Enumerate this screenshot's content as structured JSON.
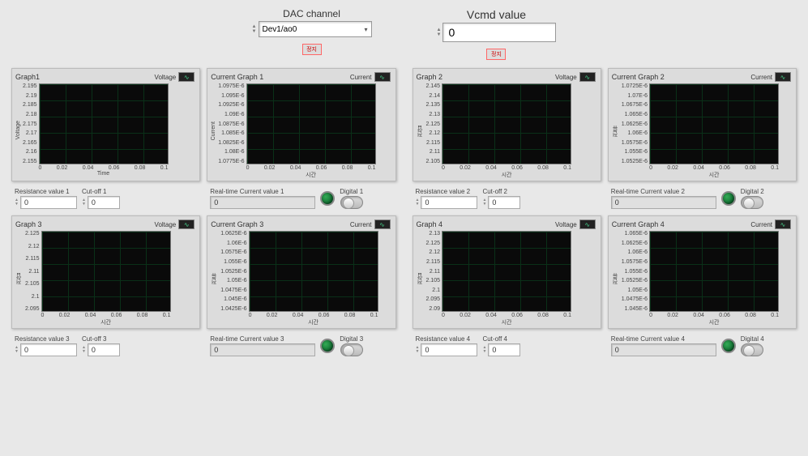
{
  "top": {
    "dac_label": "DAC channel",
    "dac_value": "Dev1/ao0",
    "vcmd_label": "Vcmd value",
    "vcmd_value": "0",
    "stop_btn": "정지"
  },
  "panels": [
    {
      "voltage": {
        "title": "Graph1",
        "legend": "Voltage",
        "ylabel": "Voltage",
        "xlabel": "Time",
        "yticks": [
          "2.195",
          "2.19",
          "2.185",
          "2.18",
          "2.175",
          "2.17",
          "2.165",
          "2.16",
          "2.155"
        ],
        "xticks": [
          "0",
          "0.02",
          "0.04",
          "0.06",
          "0.08",
          "0.1"
        ]
      },
      "current": {
        "title": "Current Graph 1",
        "legend": "Current",
        "ylabel": "Current",
        "xlabel": "시간",
        "yticks": [
          "1.0975E-6",
          "1.095E-6",
          "1.0925E-6",
          "1.09E-6",
          "1.0875E-6",
          "1.085E-6",
          "1.0825E-6",
          "1.08E-6",
          "1.0775E-6"
        ],
        "xticks": [
          "0",
          "0.02",
          "0.04",
          "0.06",
          "0.08",
          "0.1"
        ]
      },
      "resistance_label": "Resistance value 1",
      "resistance_value": "0",
      "cutoff_label": "Cut-off 1",
      "cutoff_value": "0",
      "realtime_label": "Real-time Current value 1",
      "realtime_value": "0",
      "digital_label": "Digital 1"
    },
    {
      "voltage": {
        "title": "Graph 2",
        "legend": "Voltage",
        "ylabel": "전압",
        "xlabel": "시간",
        "yticks": [
          "2.145",
          "2.14",
          "2.135",
          "2.13",
          "2.125",
          "2.12",
          "2.115",
          "2.11",
          "2.105"
        ],
        "xticks": [
          "0",
          "0.02",
          "0.04",
          "0.06",
          "0.08",
          "0.1"
        ]
      },
      "current": {
        "title": "Current Graph 2",
        "legend": "Current",
        "ylabel": "전류",
        "xlabel": "시간",
        "yticks": [
          "1.0725E-6",
          "1.07E-6",
          "1.0675E-6",
          "1.065E-6",
          "1.0625E-6",
          "1.06E-6",
          "1.0575E-6",
          "1.055E-6",
          "1.0525E-6"
        ],
        "xticks": [
          "0",
          "0.02",
          "0.04",
          "0.06",
          "0.08",
          "0.1"
        ]
      },
      "resistance_label": "Resistance value 2",
      "resistance_value": "0",
      "cutoff_label": "Cut-off 2",
      "cutoff_value": "0",
      "realtime_label": "Real-time Current value 2",
      "realtime_value": "0",
      "digital_label": "Digital 2"
    },
    {
      "voltage": {
        "title": "Graph 3",
        "legend": "Voltage",
        "ylabel": "전압",
        "xlabel": "시간",
        "yticks": [
          "2.125",
          "2.12",
          "2.115",
          "2.11",
          "2.105",
          "2.1",
          "2.095"
        ],
        "xticks": [
          "0",
          "0.02",
          "0.04",
          "0.06",
          "0.08",
          "0.1"
        ]
      },
      "current": {
        "title": "Current Graph 3",
        "legend": "Current",
        "ylabel": "전류",
        "xlabel": "시간",
        "yticks": [
          "1.0625E-6",
          "1.06E-6",
          "1.0575E-6",
          "1.055E-6",
          "1.0525E-6",
          "1.05E-6",
          "1.0475E-6",
          "1.045E-6",
          "1.0425E-6"
        ],
        "xticks": [
          "0",
          "0.02",
          "0.04",
          "0.06",
          "0.08",
          "0.1"
        ]
      },
      "resistance_label": "Resistance value 3",
      "resistance_value": "0",
      "cutoff_label": "Cut-off 3",
      "cutoff_value": "0",
      "realtime_label": "Real-time Current value 3",
      "realtime_value": "0",
      "digital_label": "Digital 3"
    },
    {
      "voltage": {
        "title": "Graph 4",
        "legend": "Voltage",
        "ylabel": "전압",
        "xlabel": "시간",
        "yticks": [
          "2.13",
          "2.125",
          "2.12",
          "2.115",
          "2.11",
          "2.105",
          "2.1",
          "2.095",
          "2.09"
        ],
        "xticks": [
          "0",
          "0.02",
          "0.04",
          "0.06",
          "0.08",
          "0.1"
        ]
      },
      "current": {
        "title": "Current Graph 4",
        "legend": "Current",
        "ylabel": "전류",
        "xlabel": "시간",
        "yticks": [
          "1.065E-6",
          "1.0625E-6",
          "1.06E-6",
          "1.0575E-6",
          "1.055E-6",
          "1.0525E-6",
          "1.05E-6",
          "1.0475E-6",
          "1.045E-6"
        ],
        "xticks": [
          "0",
          "0.02",
          "0.04",
          "0.06",
          "0.08",
          "0.1"
        ]
      },
      "resistance_label": "Resistance value 4",
      "resistance_value": "0",
      "cutoff_label": "Cut-off 4",
      "cutoff_value": "0",
      "realtime_label": "Real-time Current value 4",
      "realtime_value": "0",
      "digital_label": "Digital 4"
    }
  ],
  "style": {
    "plot_bg": "#0a0a0a",
    "grid_color": "#0a3018",
    "panel_bg": "#dcdcdc",
    "page_bg": "#e8e8e8",
    "led_on": "#1a7a2a"
  }
}
